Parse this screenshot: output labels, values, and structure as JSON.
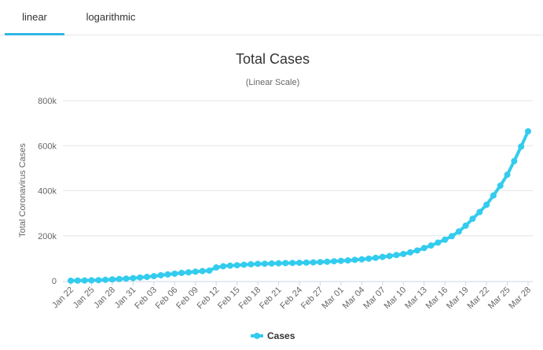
{
  "tabs": [
    {
      "label": "linear",
      "active": true
    },
    {
      "label": "logarithmic",
      "active": false
    }
  ],
  "colors": {
    "series": "#33ccee",
    "accent": "#33b5e5"
  },
  "chart_data": {
    "type": "line",
    "title": "Total Cases",
    "subtitle": "(Linear Scale)",
    "xlabel": "",
    "ylabel": "Total Coronavirus Cases",
    "ylim": [
      0,
      800000
    ],
    "yticks": [
      0,
      200000,
      400000,
      600000,
      800000
    ],
    "ytick_labels": [
      "0",
      "200k",
      "400k",
      "600k",
      "800k"
    ],
    "xtick_labels": [
      "Jan 22",
      "Jan 25",
      "Jan 28",
      "Jan 31",
      "Feb 03",
      "Feb 06",
      "Feb 09",
      "Feb 12",
      "Feb 15",
      "Feb 18",
      "Feb 21",
      "Feb 24",
      "Feb 27",
      "Mar 01",
      "Mar 04",
      "Mar 07",
      "Mar 10",
      "Mar 13",
      "Mar 16",
      "Mar 19",
      "Mar 22",
      "Mar 25",
      "Mar 28"
    ],
    "xtick_every": 3,
    "legend": {
      "label": "Cases",
      "position": "bottom-center"
    },
    "series": [
      {
        "name": "Cases",
        "x": [
          "Jan 22",
          "Jan 23",
          "Jan 24",
          "Jan 25",
          "Jan 26",
          "Jan 27",
          "Jan 28",
          "Jan 29",
          "Jan 30",
          "Jan 31",
          "Feb 01",
          "Feb 02",
          "Feb 03",
          "Feb 04",
          "Feb 05",
          "Feb 06",
          "Feb 07",
          "Feb 08",
          "Feb 09",
          "Feb 10",
          "Feb 11",
          "Feb 12",
          "Feb 13",
          "Feb 14",
          "Feb 15",
          "Feb 16",
          "Feb 17",
          "Feb 18",
          "Feb 19",
          "Feb 20",
          "Feb 21",
          "Feb 22",
          "Feb 23",
          "Feb 24",
          "Feb 25",
          "Feb 26",
          "Feb 27",
          "Feb 28",
          "Feb 29",
          "Mar 01",
          "Mar 02",
          "Mar 03",
          "Mar 04",
          "Mar 05",
          "Mar 06",
          "Mar 07",
          "Mar 08",
          "Mar 09",
          "Mar 10",
          "Mar 11",
          "Mar 12",
          "Mar 13",
          "Mar 14",
          "Mar 15",
          "Mar 16",
          "Mar 17",
          "Mar 18",
          "Mar 19",
          "Mar 20",
          "Mar 21",
          "Mar 22",
          "Mar 23",
          "Mar 24",
          "Mar 25",
          "Mar 26",
          "Mar 27",
          "Mar 28"
        ],
        "values": [
          580,
          845,
          1317,
          2015,
          2800,
          4581,
          6058,
          7813,
          9823,
          11950,
          14553,
          17391,
          20630,
          24545,
          28266,
          31439,
          34876,
          37552,
          40553,
          43099,
          45134,
          59287,
          64438,
          67100,
          69197,
          71329,
          73332,
          75184,
          75700,
          76677,
          77673,
          78651,
          79205,
          80087,
          80828,
          81820,
          83112,
          84615,
          86604,
          88585,
          90443,
          93016,
          95314,
          98425,
          102050,
          106099,
          109991,
          114381,
          118948,
          126214,
          134576,
          145483,
          156653,
          169593,
          182490,
          198238,
          218822,
          244933,
          275597,
          305036,
          337489,
          378830,
          422574,
          471035,
          531865,
          596366,
          663740
        ]
      }
    ]
  }
}
